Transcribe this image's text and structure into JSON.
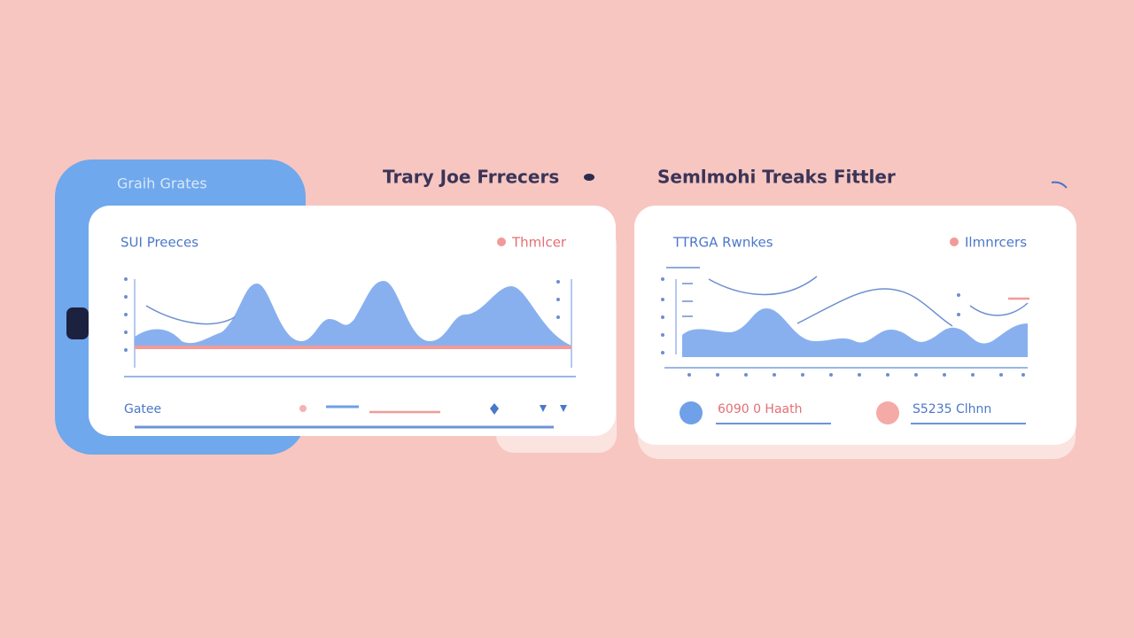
{
  "header": {
    "left_title": "Trary Joe Frrecers",
    "right_title": "Semlmohi Treaks Fittler"
  },
  "side_card": {
    "title": "Graih Grates"
  },
  "left_panel": {
    "title": "SUI Preeces",
    "legend": "Thmlcer",
    "footer_label": "Gatee"
  },
  "right_panel": {
    "title": "TTRGA Rwnkes",
    "legend": "Ilmnrcers",
    "stats": [
      "6090 0 Haath",
      "S5235 Clhnn"
    ]
  }
}
